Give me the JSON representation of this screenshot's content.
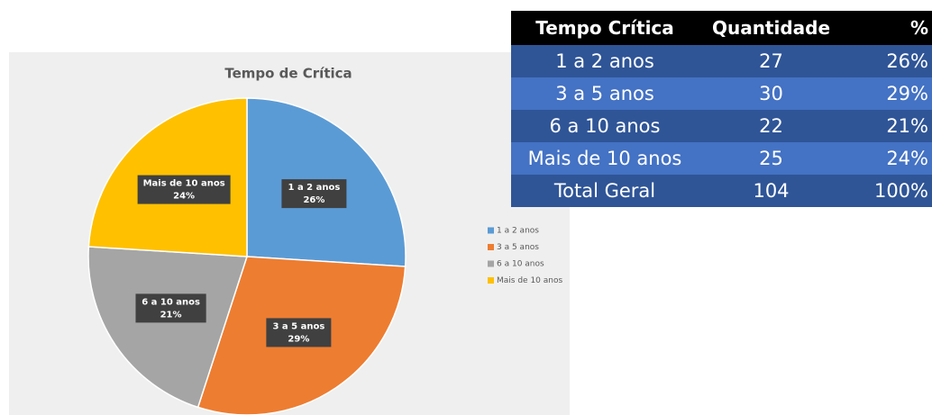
{
  "chart_data": {
    "type": "pie",
    "title": "Tempo de Crítica",
    "categories": [
      "1 a 2 anos",
      "3 a 5 anos",
      "6 a 10 anos",
      "Mais de 10 anos"
    ],
    "values": [
      26,
      29,
      21,
      24
    ],
    "value_labels": [
      "26%",
      "29%",
      "21%",
      "24%"
    ],
    "colors": [
      "#5b9bd5",
      "#ed7d31",
      "#a5a5a5",
      "#ffc000"
    ],
    "legend": "right"
  },
  "table": {
    "header": [
      "Tempo Crítica",
      "Quantidade",
      "%"
    ],
    "rows": [
      [
        "1 a 2 anos",
        27,
        "26%"
      ],
      [
        "3 a 5 anos",
        30,
        "29%"
      ],
      [
        "6 a 10 anos",
        22,
        "21%"
      ],
      [
        "Mais de 10 anos",
        25,
        "24%"
      ],
      [
        "Total Geral",
        104,
        "100%"
      ]
    ]
  }
}
